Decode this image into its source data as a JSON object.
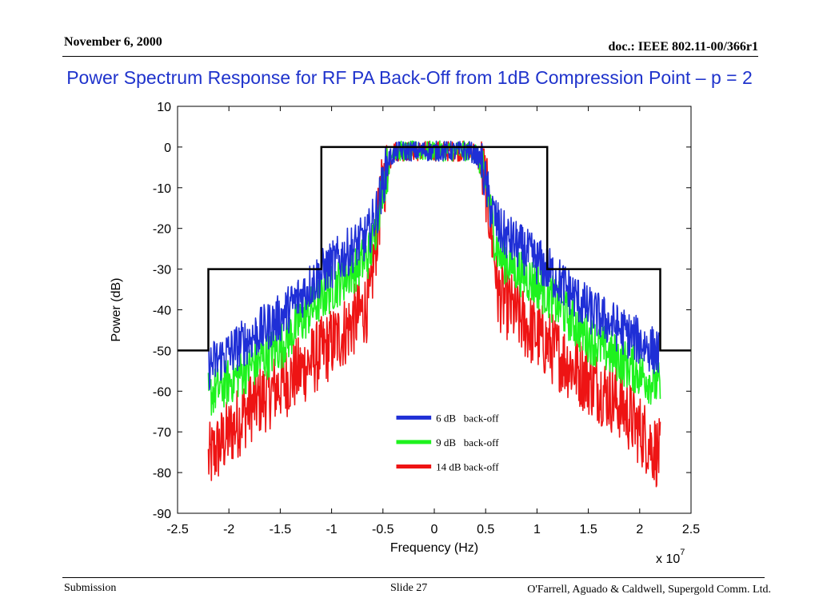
{
  "header": {
    "date": "November 6, 2000",
    "doc_id": "doc.: IEEE 802.11-00/366r1"
  },
  "slide": {
    "title": "Power Spectrum Response for RF PA Back-Off from 1dB Compression Point – p = 2",
    "title_color": "#1f33cc"
  },
  "footer": {
    "left": "Submission",
    "center": "Slide 27",
    "right": "O'Farrell, Aguado & Caldwell, Supergold Comm. Ltd."
  },
  "chart_data": {
    "type": "line",
    "xlabel": "Frequency (Hz)",
    "ylabel": "Power (dB)",
    "x_exponent_label": "x 10",
    "x_exponent": "7",
    "xlim": [
      -2.5,
      2.5
    ],
    "ylim": [
      -90,
      10
    ],
    "xticks": [
      "-2.5",
      "-2",
      "-1.5",
      "-1",
      "-0.5",
      "0",
      "0.5",
      "1",
      "1.5",
      "2",
      "2.5"
    ],
    "yticks": [
      "10",
      "0",
      "-10",
      "-20",
      "-30",
      "-40",
      "-50",
      "-60",
      "-70",
      "-80",
      "-90"
    ],
    "grid": false,
    "legend_position": "bottom-center",
    "spectral_mask": {
      "color": "#000000",
      "points": [
        [
          -2.5,
          -50
        ],
        [
          -2.2,
          -50
        ],
        [
          -2.2,
          -30
        ],
        [
          -1.1,
          -30
        ],
        [
          -1.1,
          0
        ],
        [
          1.1,
          0
        ],
        [
          1.1,
          -30
        ],
        [
          2.2,
          -30
        ],
        [
          2.2,
          -50
        ],
        [
          2.5,
          -50
        ]
      ]
    },
    "series": [
      {
        "name": "6 dB   back-off",
        "color": "#1f2fd6",
        "envelope": [
          [
            -2.2,
            -54
          ],
          [
            -1.5,
            -42
          ],
          [
            -1.1,
            -31
          ],
          [
            -0.65,
            -22
          ],
          [
            -0.55,
            -15
          ],
          [
            -0.45,
            -3
          ],
          [
            -0.35,
            -1
          ],
          [
            0.35,
            -1
          ],
          [
            0.45,
            -3
          ],
          [
            0.55,
            -15
          ],
          [
            0.65,
            -21
          ],
          [
            1.1,
            -30
          ],
          [
            1.5,
            -40
          ],
          [
            2.2,
            -51
          ]
        ]
      },
      {
        "name": "9 dB   back-off",
        "color": "#1ef21e",
        "envelope": [
          [
            -2.2,
            -61
          ],
          [
            -1.5,
            -49
          ],
          [
            -1.1,
            -37
          ],
          [
            -0.65,
            -27
          ],
          [
            -0.6,
            -24
          ],
          [
            -0.5,
            -9
          ],
          [
            -0.4,
            -1
          ],
          [
            0.4,
            -1
          ],
          [
            0.5,
            -9
          ],
          [
            0.6,
            -24
          ],
          [
            0.65,
            -27
          ],
          [
            1.1,
            -36
          ],
          [
            1.5,
            -47
          ],
          [
            2.2,
            -59
          ]
        ]
      },
      {
        "name": "14 dB back-off",
        "color": "#ee1414",
        "envelope": [
          [
            -2.2,
            -77
          ],
          [
            -1.8,
            -64
          ],
          [
            -1.3,
            -55
          ],
          [
            -0.9,
            -46
          ],
          [
            -0.62,
            -38
          ],
          [
            -0.6,
            -30
          ],
          [
            -0.5,
            -9
          ],
          [
            -0.4,
            -1
          ],
          [
            0.4,
            -1
          ],
          [
            0.5,
            -9
          ],
          [
            0.6,
            -30
          ],
          [
            0.62,
            -36
          ],
          [
            0.9,
            -44
          ],
          [
            1.3,
            -53
          ],
          [
            1.8,
            -63
          ],
          [
            2.2,
            -76
          ]
        ]
      }
    ]
  }
}
